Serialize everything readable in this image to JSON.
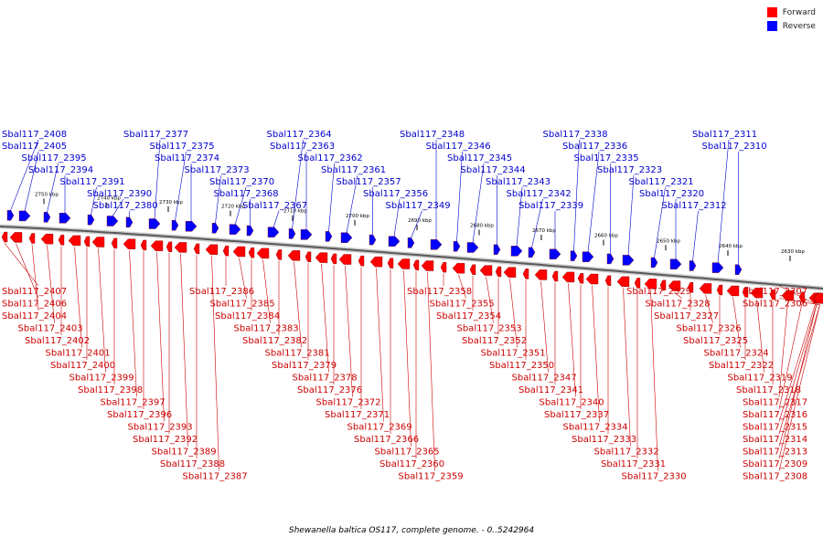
{
  "legend": {
    "forward_label": "Forward",
    "reverse_label": "Reverse",
    "forward_color": "#ff0000",
    "reverse_color": "#0000ff"
  },
  "caption": "Shewanella baltica OS117, complete genome. - 0..5242964",
  "axis": {
    "ticks": [
      "2750 kbp",
      "2740 kbp",
      "2730 kbp",
      "2720 kbp",
      "2710 kbp",
      "2700 kbp",
      "2690 kbp",
      "2680 kbp",
      "2670 kbp",
      "2660 kbp",
      "2650 kbp",
      "2640 kbp",
      "2630 kbp"
    ]
  },
  "genes": {
    "reverse": [
      "Sbal117_2408",
      "Sbal117_2405",
      "Sbal117_2395",
      "Sbal117_2394",
      "Sbal117_2391",
      "Sbal117_2390",
      "Sbal117_2380",
      "Sbal117_2377",
      "Sbal117_2375",
      "Sbal117_2374",
      "Sbal117_2373",
      "Sbal117_2370",
      "Sbal117_2368",
      "Sbal117_2367",
      "Sbal117_2364",
      "Sbal117_2363",
      "Sbal117_2362",
      "Sbal117_2361",
      "Sbal117_2357",
      "Sbal117_2356",
      "Sbal117_2349",
      "Sbal117_2348",
      "Sbal117_2346",
      "Sbal117_2345",
      "Sbal117_2344",
      "Sbal117_2343",
      "Sbal117_2342",
      "Sbal117_2339",
      "Sbal117_2338",
      "Sbal117_2336",
      "Sbal117_2335",
      "Sbal117_2323",
      "Sbal117_2321",
      "Sbal117_2320",
      "Sbal117_2312",
      "Sbal117_2311",
      "Sbal117_2310"
    ],
    "forward": [
      "Sbal117_2407",
      "Sbal117_2406",
      "Sbal117_2404",
      "Sbal117_2403",
      "Sbal117_2402",
      "Sbal117_2401",
      "Sbal117_2400",
      "Sbal117_2399",
      "Sbal117_2398",
      "Sbal117_2397",
      "Sbal117_2396",
      "Sbal117_2393",
      "Sbal117_2392",
      "Sbal117_2389",
      "Sbal117_2388",
      "Sbal117_2387",
      "Sbal117_2386",
      "Sbal117_2385",
      "Sbal117_2384",
      "Sbal117_2383",
      "Sbal117_2382",
      "Sbal117_2381",
      "Sbal117_2379",
      "Sbal117_2378",
      "Sbal117_2376",
      "Sbal117_2372",
      "Sbal117_2371",
      "Sbal117_2369",
      "Sbal117_2366",
      "Sbal117_2365",
      "Sbal117_2360",
      "Sbal117_2359",
      "Sbal117_2358",
      "Sbal117_2355",
      "Sbal117_2354",
      "Sbal117_2353",
      "Sbal117_2352",
      "Sbal117_2351",
      "Sbal117_2350",
      "Sbal117_2347",
      "Sbal117_2341",
      "Sbal117_2340",
      "Sbal117_2337",
      "Sbal117_2334",
      "Sbal117_2333",
      "Sbal117_2332",
      "Sbal117_2331",
      "Sbal117_2330",
      "Sbal117_2329",
      "Sbal117_2328",
      "Sbal117_2327",
      "Sbal117_2326",
      "Sbal117_2325",
      "Sbal117_2324",
      "Sbal117_2322",
      "Sbal117_2319",
      "Sbal117_2318",
      "Sbal117_2317",
      "Sbal117_2316",
      "Sbal117_2315",
      "Sbal117_2314",
      "Sbal117_2313",
      "Sbal117_2309",
      "Sbal117_2308",
      "Sbal117_2307",
      "Sbal117_2306"
    ]
  }
}
